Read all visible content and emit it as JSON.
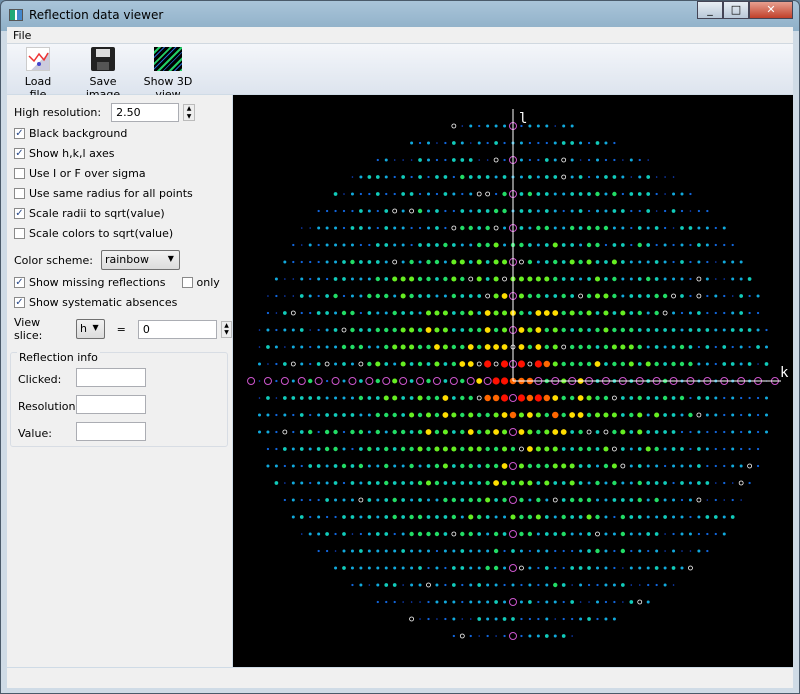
{
  "window": {
    "title": "Reflection data viewer"
  },
  "menu": [
    "File"
  ],
  "toolbar": [
    {
      "label": "Load file",
      "icon": "load-file-icon"
    },
    {
      "label": "Save image",
      "icon": "floppy-disk-icon"
    },
    {
      "label": "Show 3D view",
      "icon": "3d-view-icon"
    }
  ],
  "settings": {
    "high_resolution_label": "High resolution:",
    "high_resolution": "2.50",
    "checks": [
      {
        "label": "Black background",
        "checked": true
      },
      {
        "label": "Show h,k,l axes",
        "checked": true
      },
      {
        "label": "Use I or F over sigma",
        "checked": false
      },
      {
        "label": "Use same radius for all points",
        "checked": false
      },
      {
        "label": "Scale radii to sqrt(value)",
        "checked": true
      },
      {
        "label": "Scale colors to sqrt(value)",
        "checked": false
      }
    ],
    "color_scheme_label": "Color scheme:",
    "color_scheme": "rainbow",
    "show_missing": {
      "label": "Show missing reflections",
      "checked": true
    },
    "only": {
      "label": "only",
      "checked": false
    },
    "show_absences": {
      "label": "Show systematic absences",
      "checked": true
    },
    "view_slice_label": "View slice:",
    "slice_axis": "h",
    "equals": "=",
    "slice_value": "0"
  },
  "reflection_info": {
    "title": "Reflection info",
    "clicked_label": "Clicked:",
    "resolution_label": "Resolution:",
    "value_label": "Value:",
    "clicked": "",
    "resolution": "",
    "value": ""
  },
  "plot": {
    "vertical_axis": "l",
    "horizontal_axis": "k",
    "axis_color": "#ffffff",
    "absence_color": "#cc55cc",
    "missing_color": "#ffffff"
  }
}
